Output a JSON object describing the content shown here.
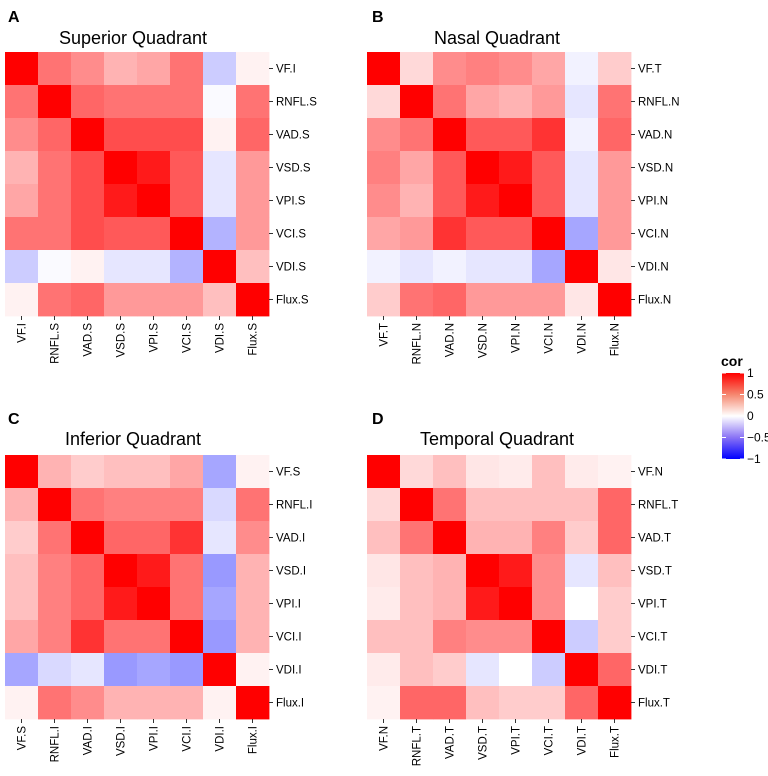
{
  "legend": {
    "title": "cor",
    "ticks": [
      "1",
      "0.5",
      "0",
      "−0.5",
      "−1"
    ],
    "tick_values": [
      1,
      0.5,
      0,
      -0.5,
      -1
    ],
    "colors": {
      "low": "#0000ff",
      "mid": "#ffffff",
      "high": "#ff0000"
    }
  },
  "chart_data": [
    {
      "type": "heatmap",
      "panel": "A",
      "title": "Superior Quadrant",
      "labels": [
        "VF.I",
        "RNFL.S",
        "VAD.S",
        "VSD.S",
        "VPI.S",
        "VCI.S",
        "VDI.S",
        "Flux.S"
      ],
      "values": [
        [
          1.0,
          0.55,
          0.45,
          0.3,
          0.35,
          0.55,
          -0.2,
          0.05
        ],
        [
          0.55,
          1.0,
          0.6,
          0.55,
          0.55,
          0.55,
          -0.02,
          0.55
        ],
        [
          0.45,
          0.6,
          1.0,
          0.7,
          0.7,
          0.7,
          0.05,
          0.6
        ],
        [
          0.3,
          0.55,
          0.7,
          1.0,
          0.9,
          0.65,
          -0.1,
          0.4
        ],
        [
          0.35,
          0.55,
          0.7,
          0.9,
          1.0,
          0.65,
          -0.1,
          0.4
        ],
        [
          0.55,
          0.55,
          0.7,
          0.65,
          0.65,
          1.0,
          -0.3,
          0.4
        ],
        [
          -0.2,
          -0.02,
          0.05,
          -0.1,
          -0.1,
          -0.3,
          1.0,
          0.25
        ],
        [
          0.05,
          0.55,
          0.6,
          0.4,
          0.4,
          0.4,
          0.25,
          1.0
        ]
      ]
    },
    {
      "type": "heatmap",
      "panel": "B",
      "title": "Nasal Quadrant",
      "labels": [
        "VF.T",
        "RNFL.N",
        "VAD.N",
        "VSD.N",
        "VPI.N",
        "VCI.N",
        "VDI.N",
        "Flux.N"
      ],
      "values": [
        [
          1.0,
          0.15,
          0.45,
          0.5,
          0.45,
          0.35,
          -0.05,
          0.2
        ],
        [
          0.15,
          1.0,
          0.55,
          0.35,
          0.3,
          0.4,
          -0.1,
          0.55
        ],
        [
          0.45,
          0.55,
          1.0,
          0.65,
          0.65,
          0.8,
          -0.05,
          0.6
        ],
        [
          0.5,
          0.35,
          0.65,
          1.0,
          0.9,
          0.65,
          -0.1,
          0.4
        ],
        [
          0.45,
          0.3,
          0.65,
          0.9,
          1.0,
          0.65,
          -0.1,
          0.4
        ],
        [
          0.35,
          0.4,
          0.8,
          0.65,
          0.65,
          1.0,
          -0.35,
          0.4
        ],
        [
          -0.05,
          -0.1,
          -0.05,
          -0.1,
          -0.1,
          -0.35,
          1.0,
          0.1
        ],
        [
          0.2,
          0.55,
          0.6,
          0.4,
          0.4,
          0.4,
          0.1,
          1.0
        ]
      ]
    },
    {
      "type": "heatmap",
      "panel": "C",
      "title": "Inferior Quadrant",
      "labels": [
        "VF.S",
        "RNFL.I",
        "VAD.I",
        "VSD.I",
        "VPI.I",
        "VCI.I",
        "VDI.I",
        "Flux.I"
      ],
      "values": [
        [
          1.0,
          0.3,
          0.2,
          0.25,
          0.25,
          0.35,
          -0.35,
          0.05
        ],
        [
          0.3,
          1.0,
          0.55,
          0.5,
          0.5,
          0.5,
          -0.15,
          0.55
        ],
        [
          0.2,
          0.55,
          1.0,
          0.6,
          0.6,
          0.8,
          -0.1,
          0.45
        ],
        [
          0.25,
          0.5,
          0.6,
          1.0,
          0.9,
          0.55,
          -0.4,
          0.3
        ],
        [
          0.25,
          0.5,
          0.6,
          0.9,
          1.0,
          0.55,
          -0.35,
          0.3
        ],
        [
          0.35,
          0.5,
          0.8,
          0.55,
          0.55,
          1.0,
          -0.4,
          0.3
        ],
        [
          -0.35,
          -0.15,
          -0.1,
          -0.4,
          -0.35,
          -0.4,
          1.0,
          0.05
        ],
        [
          0.05,
          0.55,
          0.45,
          0.3,
          0.3,
          0.3,
          0.05,
          1.0
        ]
      ]
    },
    {
      "type": "heatmap",
      "panel": "D",
      "title": "Temporal Quadrant",
      "labels": [
        "VF.N",
        "RNFL.T",
        "VAD.T",
        "VSD.T",
        "VPI.T",
        "VCI.T",
        "VDI.T",
        "Flux.T"
      ],
      "values": [
        [
          1.0,
          0.15,
          0.25,
          0.1,
          0.08,
          0.25,
          0.08,
          0.05
        ],
        [
          0.15,
          1.0,
          0.55,
          0.25,
          0.25,
          0.25,
          0.25,
          0.6
        ],
        [
          0.25,
          0.55,
          1.0,
          0.3,
          0.3,
          0.5,
          0.2,
          0.6
        ],
        [
          0.1,
          0.25,
          0.3,
          1.0,
          0.9,
          0.45,
          -0.1,
          0.25
        ],
        [
          0.08,
          0.25,
          0.3,
          0.9,
          1.0,
          0.45,
          0.0,
          0.2
        ],
        [
          0.25,
          0.25,
          0.5,
          0.45,
          0.45,
          1.0,
          -0.2,
          0.2
        ],
        [
          0.08,
          0.25,
          0.2,
          -0.1,
          0.0,
          -0.2,
          1.0,
          0.6
        ],
        [
          0.05,
          0.6,
          0.6,
          0.25,
          0.2,
          0.2,
          0.6,
          1.0
        ]
      ]
    }
  ]
}
